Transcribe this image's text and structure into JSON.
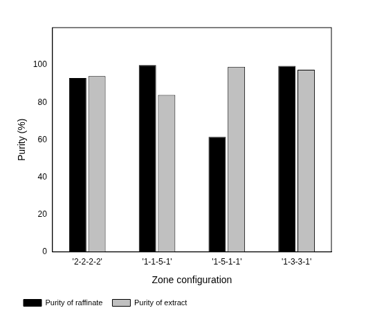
{
  "chart_data": {
    "type": "bar",
    "x_label": "Zone configuration",
    "y_label": "Purity (%)",
    "categories": [
      "'2-2-2-2'",
      "'1-1-5-1'",
      "'1-5-1-1'",
      "'1-3-3-1'"
    ],
    "series": [
      {
        "name": "Purity of raffinate",
        "color": "#000000",
        "values": [
          93,
          100,
          61.5,
          99.5
        ]
      },
      {
        "name": "Purity of extract",
        "color": "#c0c0c0",
        "values": [
          94,
          84,
          99,
          97.5
        ]
      }
    ],
    "ylim": [
      0,
      120
    ],
    "yticks": [
      0,
      20,
      40,
      60,
      80,
      100
    ],
    "grid": false,
    "legend": "bottom-left"
  }
}
